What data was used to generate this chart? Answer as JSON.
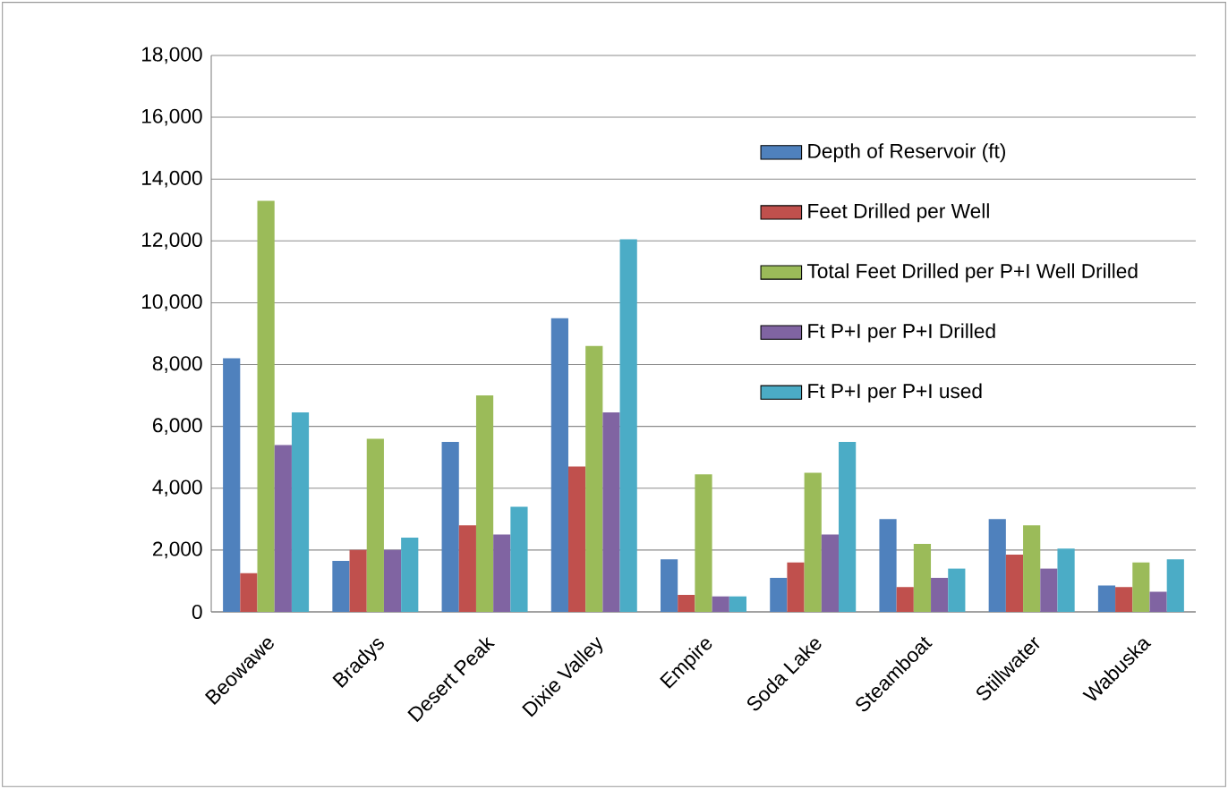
{
  "chart_data": {
    "type": "bar",
    "categories": [
      "Beowawe",
      "Bradys",
      "Desert Peak",
      "Dixie Valley",
      "Empire",
      "Soda Lake",
      "Steamboat",
      "Stillwater",
      "Wabuska"
    ],
    "series": [
      {
        "name": "Depth of Reservoir (ft)",
        "color": "#4f81bd",
        "values": [
          8200,
          1650,
          5500,
          9500,
          1700,
          1100,
          3000,
          3000,
          850
        ]
      },
      {
        "name": "Feet Drilled per Well",
        "color": "#c0504d",
        "values": [
          1250,
          2000,
          2800,
          4700,
          550,
          1600,
          800,
          1850,
          800
        ]
      },
      {
        "name": "Total Feet Drilled per P+I Well Drilled",
        "color": "#9bbb59",
        "values": [
          13300,
          5600,
          7000,
          8600,
          4450,
          4500,
          2200,
          2800,
          1600
        ]
      },
      {
        "name": "Ft P+I per P+I Drilled",
        "color": "#8064a2",
        "values": [
          5400,
          2000,
          2500,
          6450,
          500,
          2500,
          1100,
          1400,
          650
        ]
      },
      {
        "name": "Ft P+I per P+I used",
        "color": "#4bacc6",
        "values": [
          6450,
          2400,
          3400,
          12050,
          500,
          5500,
          1400,
          2050,
          1700
        ]
      }
    ],
    "ylim": [
      0,
      18000
    ],
    "yticks": [
      0,
      {
        "value": 2000,
        "label": "2,000"
      },
      {
        "value": 4000,
        "label": "4,000"
      },
      {
        "value": 6000,
        "label": "6,000"
      },
      {
        "value": 8000,
        "label": "8,000"
      },
      {
        "value": 10000,
        "label": "10,000"
      },
      {
        "value": 12000,
        "label": "12,000"
      },
      {
        "value": 14000,
        "label": "14,000"
      },
      {
        "value": 16000,
        "label": "16,000"
      },
      {
        "value": 18000,
        "label": "18,000"
      }
    ],
    "grid": "y",
    "legend": "right"
  }
}
